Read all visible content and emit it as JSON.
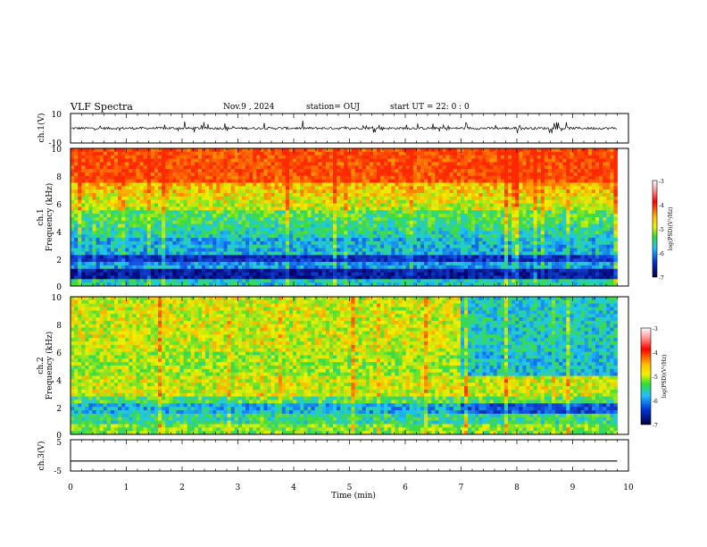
{
  "header": {
    "title": "VLF Spectra",
    "date": "Nov.9  , 2024",
    "station": "station= OUJ",
    "start": "start  UT  =   22: 0  : 0"
  },
  "chart_data": [
    {
      "type": "line",
      "panel": "ch1-waveform",
      "ylabel": "ch.1(V)",
      "ylim": [
        -10,
        10
      ],
      "ytick_labels": [
        "-10",
        "10"
      ],
      "x_range": [
        0,
        9.8
      ],
      "description_values": {
        "baseline": 0,
        "typical_spike_amplitude": 4
      }
    },
    {
      "type": "heatmap",
      "panel": "ch1-spectrogram",
      "ylabel": "ch.1\nFrequency (kHz)",
      "ylabel_line1": "ch.1",
      "ylabel_line2": "Frequency (kHz)",
      "ylim": [
        0,
        10
      ],
      "ytick_labels": [
        "0",
        "2",
        "4",
        "6",
        "8",
        "10"
      ],
      "x_range": [
        0,
        9.8
      ],
      "colorbar": {
        "label": "log(PSD)(V²/Hz)",
        "range": [
          -7,
          -3
        ],
        "tick_labels": [
          "-3",
          "-4",
          "-5",
          "-6",
          "-7"
        ]
      }
    },
    {
      "type": "heatmap",
      "panel": "ch2-spectrogram",
      "ylabel": "ch.2\nFrequency (kHz)",
      "ylabel_line1": "ch.2",
      "ylabel_line2": "Frequency (kHz)",
      "ylim": [
        0,
        10
      ],
      "ytick_labels": [
        "0",
        "2",
        "4",
        "6",
        "8",
        "10"
      ],
      "x_range": [
        0,
        9.8
      ],
      "colorbar": {
        "label": "log(PSD)(V²/Hz)",
        "range": [
          -7,
          -3
        ],
        "tick_labels": [
          "-3",
          "-4",
          "-5",
          "-6",
          "-7"
        ]
      }
    },
    {
      "type": "line",
      "panel": "ch3-waveform",
      "ylabel": "ch.3(V)",
      "ylim": [
        -5,
        5
      ],
      "ytick_labels": [
        "-5",
        "5"
      ],
      "x_range": [
        0,
        9.8
      ],
      "values_constant": -1.8
    }
  ],
  "xaxis": {
    "label": "Time  (min)",
    "xlim": [
      0,
      10
    ],
    "tick_labels": [
      "0",
      "1",
      "2",
      "3",
      "4",
      "5",
      "6",
      "7",
      "8",
      "9",
      "10"
    ]
  },
  "colors": {
    "spectrum_red": "#ff3000",
    "spectrum_yellow": "#f0f000",
    "spectrum_green": "#30e030",
    "spectrum_cyan": "#20c0ff",
    "spectrum_blue": "#0030d0",
    "spectrum_navy": "#000080"
  }
}
